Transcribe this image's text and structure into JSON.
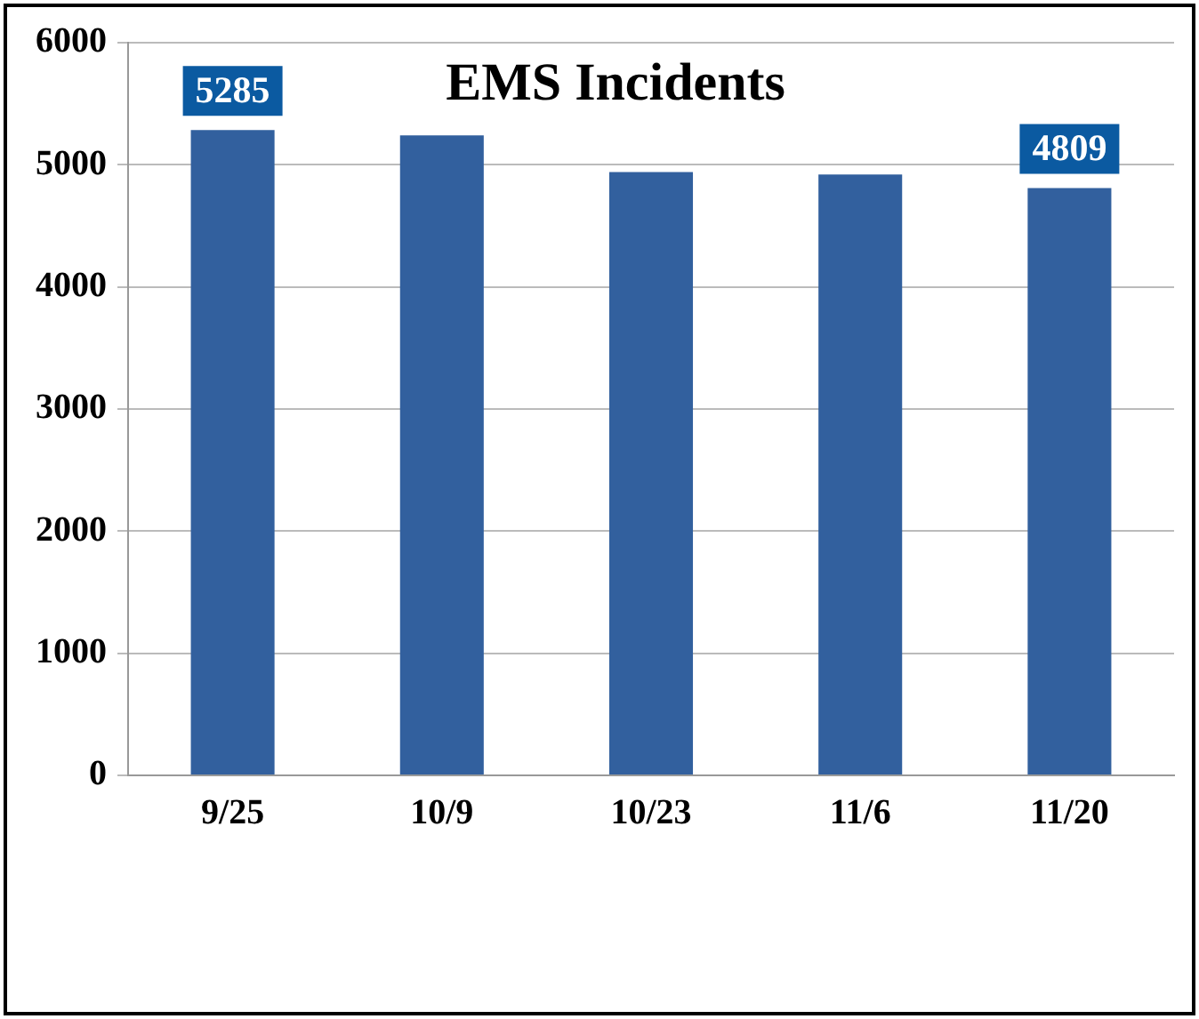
{
  "chart_data": {
    "type": "bar",
    "title": "EMS Incidents",
    "categories": [
      "9/25",
      "10/9",
      "10/23",
      "11/6",
      "11/20"
    ],
    "values": [
      5285,
      5240,
      4940,
      4920,
      4809
    ],
    "value_labels": [
      "5285",
      null,
      null,
      null,
      "4809"
    ],
    "color": "#32609e",
    "ylim": [
      0,
      6000
    ],
    "yticks": [
      0,
      1000,
      2000,
      3000,
      4000,
      5000,
      6000
    ],
    "grid": "y",
    "legend": false
  }
}
